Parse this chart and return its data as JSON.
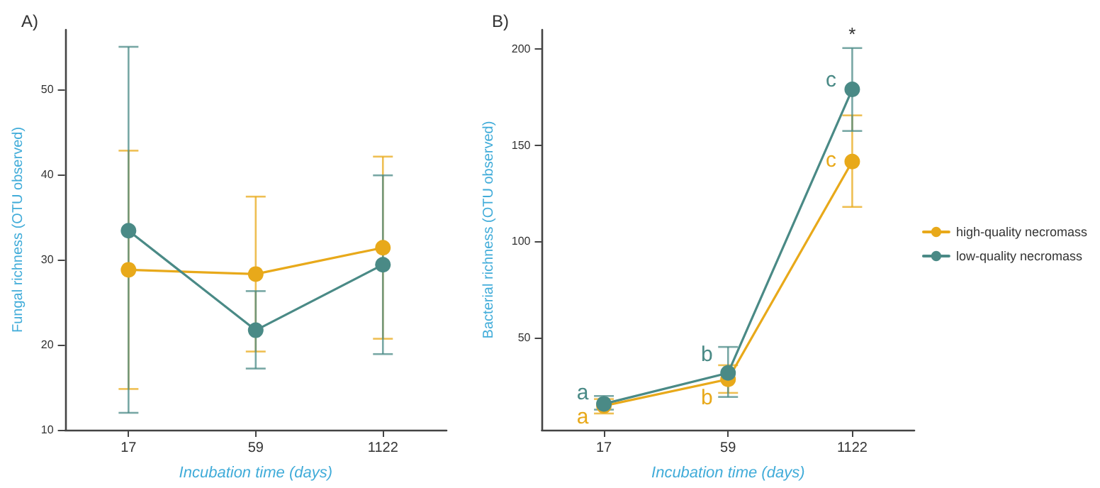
{
  "chart_data": [
    {
      "type": "line",
      "title": "A)",
      "xlabel": "Incubation time (days)",
      "ylabel": "Fungal richness (OTU observed)",
      "categories": [
        "17",
        "59",
        "1122"
      ],
      "series": [
        {
          "color": "#e8a91a",
          "values": [
            28.8,
            28.3,
            31.4
          ],
          "errors": [
            [
              14.8,
              42.8
            ],
            [
              19.2,
              37.4
            ],
            [
              20.7,
              42.1
            ]
          ]
        },
        {
          "color": "#4a8a86",
          "values": [
            33.4,
            21.7,
            29.4
          ],
          "errors": [
            [
              12,
              55
            ],
            [
              17.2,
              26.3
            ],
            [
              18.9,
              39.9
            ]
          ]
        }
      ],
      "ylim": [
        10,
        57
      ],
      "yticks": [
        10,
        20,
        30,
        40,
        50
      ],
      "grid": false,
      "marker": "circle",
      "line_style": "solid"
    },
    {
      "type": "line",
      "title": "B)",
      "xlabel": "Incubation time (days)",
      "ylabel": "Bacterial richness (OTU observed)",
      "categories": [
        "17",
        "59",
        "1122"
      ],
      "series": [
        {
          "name": "high-quality necromass",
          "color": "#e8a91a",
          "values": [
            14.5,
            28.3,
            141.5
          ],
          "errors": [
            [
              10.5,
              18
            ],
            [
              21.2,
              35.6
            ],
            [
              117.9,
              165.5
            ]
          ]
        },
        {
          "name": "low-quality necromass",
          "color": "#4a8a86",
          "values": [
            15.5,
            31.6,
            179
          ],
          "errors": [
            [
              12.5,
              19.6
            ],
            [
              19.1,
              45.1
            ],
            [
              157.4,
              200.5
            ]
          ]
        }
      ],
      "annotations": [
        {
          "text": "a",
          "x": "17",
          "y": 21
        },
        {
          "text": "a",
          "x": "17",
          "y": 8.5
        },
        {
          "text": "b",
          "x": "59",
          "y": 41
        },
        {
          "text": "b",
          "x": "59",
          "y": 18.5
        },
        {
          "text": "c",
          "x": "1122",
          "y": 184
        },
        {
          "text": "c",
          "x": "1122",
          "y": 142
        },
        {
          "text": "*",
          "x": "1122",
          "y": 200.5
        }
      ],
      "ylim": [
        2,
        210
      ],
      "yticks": [
        50,
        100,
        150,
        200
      ],
      "grid": false,
      "legend": "right",
      "marker": "circle",
      "line_style": "solid"
    }
  ]
}
